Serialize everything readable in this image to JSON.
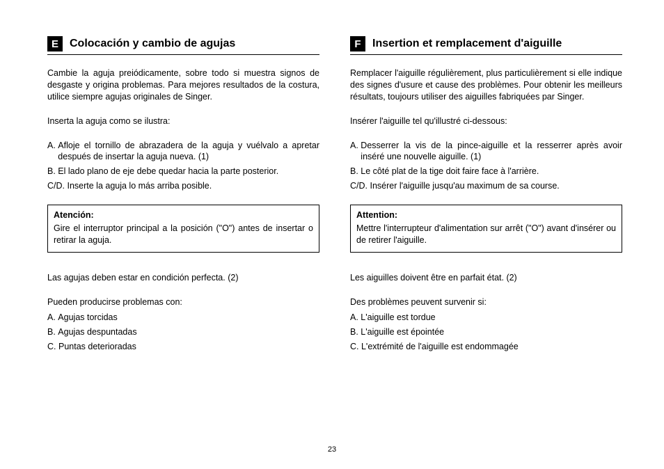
{
  "pageNumber": "23",
  "left": {
    "badge": "E",
    "title": "Colocación y cambio de agujas",
    "intro": "Cambie la aguja preiódicamente, sobre todo si muestra signos de desgaste y origina problemas. Para mejores resultados de la costura, utilice siempre agujas originales de Singer.",
    "instruction": "Inserta la aguja como se ilustra:",
    "steps": [
      {
        "label": "A. ",
        "text": "Afloje el tornillo de abrazadera de la aguja y vuélvalo a apretar  después de insertar la aguja nueva. (1)",
        "justify": true
      },
      {
        "label": "B. ",
        "text": "El lado plano de eje debe quedar hacia la parte posterior.",
        "justify": false
      },
      {
        "label": "C/D. ",
        "text": "Inserte la aguja lo más arriba posible.",
        "justify": false
      }
    ],
    "box": {
      "title": "Atención:",
      "text": "Gire el interruptor principal a la posición (\"O\") antes de insertar o retirar la aguja."
    },
    "after1": "Las agujas deben estar en condición perfecta. (2)",
    "after2": "Pueden producirse problemas con:",
    "problems": [
      {
        "label": "A. ",
        "text": "Agujas torcidas"
      },
      {
        "label": "B. ",
        "text": "Agujas despuntadas"
      },
      {
        "label": "C. ",
        "text": "Puntas deterioradas"
      }
    ]
  },
  "right": {
    "badge": "F",
    "title": "Insertion et remplacement d'aiguille",
    "intro": "Remplacer l'aiguille régulièrement, plus particulièrement si elle indique des signes d'usure et cause des problèmes. Pour obtenir les meilleurs résultats, toujours utiliser des aiguilles fabriquées par Singer.",
    "instruction": "Insérer l'aiguille tel qu'illustré ci-dessous:",
    "steps": [
      {
        "label": "A. ",
        "text": "Desserrer la vis de la pince-aiguille et la resserrer après avoir inséré une nouvelle aiguille. (1)",
        "justify": true
      },
      {
        "label": "B. ",
        "text": "Le côté plat de la tige doit faire face à l'arrière.",
        "justify": false
      },
      {
        "label": "C/D. ",
        "text": "Insérer l'aiguille jusqu'au maximum de sa course.",
        "justify": false
      }
    ],
    "box": {
      "title": "Attention:",
      "text": "Mettre l'interrupteur d'alimentation sur arrêt (\"O\") avant d'insérer ou de retirer l'aiguille."
    },
    "after1": "Les aiguilles doivent être en parfait état. (2)",
    "after2": "Des problèmes peuvent survenir si:",
    "problems": [
      {
        "label": "A. ",
        "text": "L'aiguille est tordue"
      },
      {
        "label": "B. ",
        "text": "L'aiguille est épointée"
      },
      {
        "label": "C. ",
        "text": "L'extrémité de l'aiguille est endommagée"
      }
    ]
  }
}
